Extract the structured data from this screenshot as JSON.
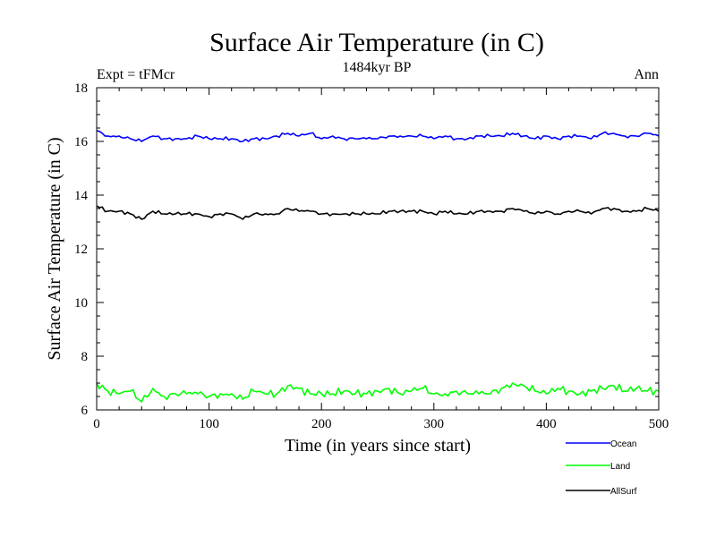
{
  "chart_data": {
    "type": "line",
    "title": "Surface Air Temperature (in C)",
    "subtitle": "1484kyr BP",
    "left_note": "Expt = tFMcr",
    "right_note": "Ann",
    "xlabel": "Time (in years since start)",
    "ylabel": "Surface Air Temperature (in C)",
    "xlim": [
      0,
      500
    ],
    "ylim": [
      6,
      18
    ],
    "x_ticks": [
      "0",
      "100",
      "200",
      "300",
      "400",
      "500"
    ],
    "y_ticks": [
      "6",
      "8",
      "10",
      "12",
      "14",
      "16",
      "18"
    ],
    "grid": false,
    "legend_position": "bottom-right",
    "series": [
      {
        "name": "Ocean",
        "color": "#0000ff",
        "x": [
          0,
          10,
          20,
          30,
          40,
          50,
          60,
          70,
          80,
          90,
          100,
          110,
          120,
          130,
          140,
          150,
          160,
          170,
          180,
          190,
          200,
          210,
          220,
          230,
          240,
          250,
          260,
          270,
          280,
          290,
          300,
          310,
          320,
          330,
          340,
          350,
          360,
          370,
          380,
          390,
          400,
          410,
          420,
          430,
          440,
          450,
          460,
          470,
          480,
          490,
          500
        ],
        "values": [
          16.4,
          16.2,
          16.2,
          16.1,
          16.0,
          16.2,
          16.1,
          16.1,
          16.1,
          16.2,
          16.1,
          16.1,
          16.1,
          16.0,
          16.1,
          16.1,
          16.2,
          16.3,
          16.2,
          16.3,
          16.1,
          16.2,
          16.1,
          16.1,
          16.1,
          16.1,
          16.2,
          16.2,
          16.2,
          16.2,
          16.1,
          16.2,
          16.1,
          16.1,
          16.2,
          16.2,
          16.2,
          16.3,
          16.2,
          16.1,
          16.2,
          16.1,
          16.2,
          16.2,
          16.1,
          16.3,
          16.3,
          16.2,
          16.2,
          16.3,
          16.2
        ]
      },
      {
        "name": "Land",
        "color": "#00ff00",
        "x": [
          0,
          10,
          20,
          30,
          40,
          50,
          60,
          70,
          80,
          90,
          100,
          110,
          120,
          130,
          140,
          150,
          160,
          170,
          180,
          190,
          200,
          210,
          220,
          230,
          240,
          250,
          260,
          270,
          280,
          290,
          300,
          310,
          320,
          330,
          340,
          350,
          360,
          370,
          380,
          390,
          400,
          410,
          420,
          430,
          440,
          450,
          460,
          470,
          480,
          490,
          500
        ],
        "values": [
          7.0,
          6.7,
          6.6,
          6.7,
          6.3,
          6.8,
          6.5,
          6.6,
          6.6,
          6.6,
          6.5,
          6.6,
          6.6,
          6.4,
          6.7,
          6.6,
          6.6,
          6.9,
          6.8,
          6.6,
          6.6,
          6.6,
          6.7,
          6.6,
          6.6,
          6.7,
          6.8,
          6.6,
          6.7,
          6.8,
          6.6,
          6.6,
          6.7,
          6.6,
          6.6,
          6.6,
          6.8,
          7.0,
          6.9,
          6.7,
          6.6,
          6.8,
          6.7,
          6.6,
          6.7,
          6.8,
          6.9,
          6.7,
          6.8,
          6.7,
          6.7
        ]
      },
      {
        "name": "AllSurf",
        "color": "#000000",
        "x": [
          0,
          10,
          20,
          30,
          40,
          50,
          60,
          70,
          80,
          90,
          100,
          110,
          120,
          130,
          140,
          150,
          160,
          170,
          180,
          190,
          200,
          210,
          220,
          230,
          240,
          250,
          260,
          270,
          280,
          290,
          300,
          310,
          320,
          330,
          340,
          350,
          360,
          370,
          380,
          390,
          400,
          410,
          420,
          430,
          440,
          450,
          460,
          470,
          480,
          490,
          500
        ],
        "values": [
          13.6,
          13.4,
          13.4,
          13.3,
          13.1,
          13.4,
          13.3,
          13.3,
          13.3,
          13.3,
          13.2,
          13.3,
          13.3,
          13.1,
          13.3,
          13.3,
          13.3,
          13.5,
          13.4,
          13.4,
          13.3,
          13.3,
          13.3,
          13.3,
          13.3,
          13.3,
          13.4,
          13.4,
          13.4,
          13.4,
          13.3,
          13.4,
          13.3,
          13.3,
          13.4,
          13.4,
          13.4,
          13.5,
          13.4,
          13.3,
          13.4,
          13.3,
          13.4,
          13.4,
          13.3,
          13.5,
          13.5,
          13.4,
          13.4,
          13.5,
          13.4
        ]
      }
    ]
  }
}
